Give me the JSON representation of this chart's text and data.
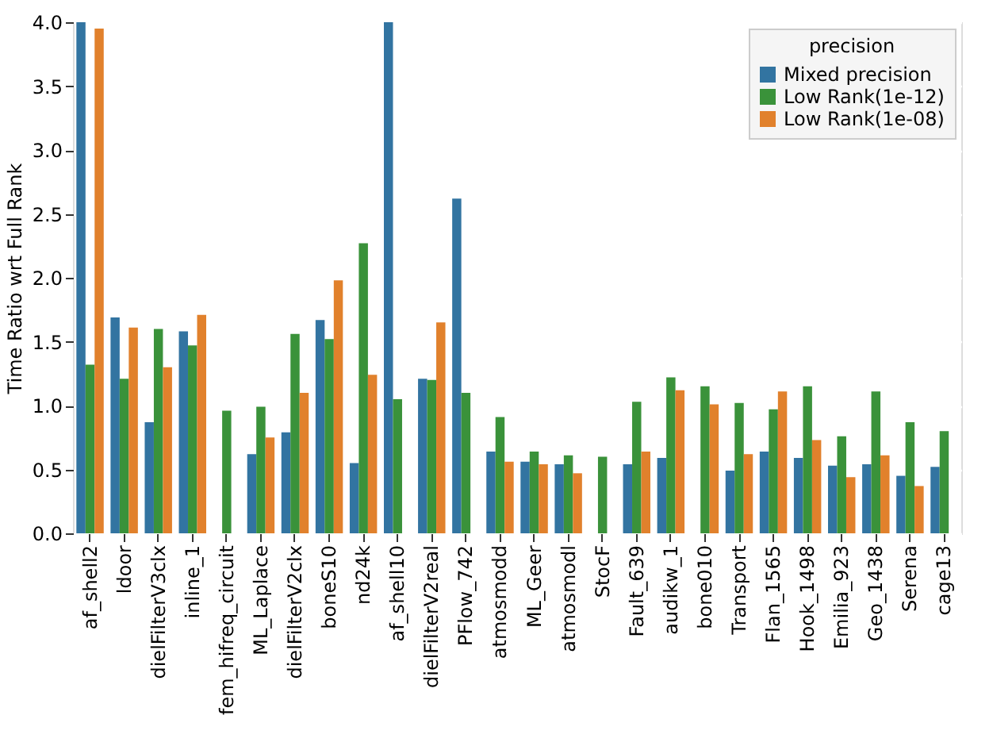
{
  "chart_data": {
    "type": "bar",
    "ylabel": "Time Ratio wrt Full Rank",
    "legend_title": "precision",
    "categories": [
      "af_shell2",
      "ldoor",
      "dielFilterV3clx",
      "inline_1",
      "fem_hifreq_circuit",
      "ML_Laplace",
      "dielFilterV2clx",
      "boneS10",
      "nd24k",
      "af_shell10",
      "dielFilterV2real",
      "PFlow_742",
      "atmosmodd",
      "ML_Geer",
      "atmosmodl",
      "StocF",
      "Fault_639",
      "audikw_1",
      "bone010",
      "Transport",
      "Flan_1565",
      "Hook_1498",
      "Emilia_923",
      "Geo_1438",
      "Serena",
      "cage13"
    ],
    "series": [
      {
        "name": "Mixed precision",
        "color": "#3274a1",
        "values": [
          4.0,
          1.69,
          0.87,
          1.58,
          null,
          0.62,
          0.79,
          1.67,
          0.55,
          4.0,
          1.21,
          2.62,
          0.64,
          0.56,
          0.54,
          null,
          0.54,
          0.59,
          null,
          0.49,
          0.64,
          0.59,
          0.53,
          0.54,
          0.45,
          0.52
        ]
      },
      {
        "name": "Low Rank(1e-12)",
        "color": "#3a923a",
        "values": [
          1.32,
          1.21,
          1.6,
          1.47,
          0.96,
          0.99,
          1.56,
          1.52,
          2.27,
          1.05,
          1.2,
          1.1,
          0.91,
          0.64,
          0.61,
          0.6,
          1.03,
          1.22,
          1.15,
          1.02,
          0.97,
          1.15,
          0.76,
          1.11,
          0.87,
          0.8
        ]
      },
      {
        "name": "Low Rank(1e-08)",
        "color": "#e1812c",
        "values": [
          3.95,
          1.61,
          1.3,
          1.71,
          null,
          0.75,
          1.1,
          1.98,
          1.24,
          null,
          1.65,
          null,
          0.56,
          0.54,
          0.47,
          null,
          0.64,
          1.12,
          1.01,
          0.62,
          1.11,
          0.73,
          0.44,
          0.61,
          0.37,
          null
        ]
      }
    ],
    "ylim": [
      0,
      4.0
    ],
    "yticks": [
      {
        "value": 0,
        "label": "0.0"
      },
      {
        "value": 0.5,
        "label": "0.5"
      },
      {
        "value": 1,
        "label": "1.0"
      },
      {
        "value": 1.5,
        "label": "1.5"
      },
      {
        "value": 2,
        "label": "2.0"
      },
      {
        "value": 2.5,
        "label": "2.5"
      },
      {
        "value": 3,
        "label": "3.0"
      },
      {
        "value": 3.5,
        "label": "3.5"
      },
      {
        "value": 4,
        "label": "4.0"
      }
    ],
    "grid": "y",
    "legend": "top right"
  }
}
